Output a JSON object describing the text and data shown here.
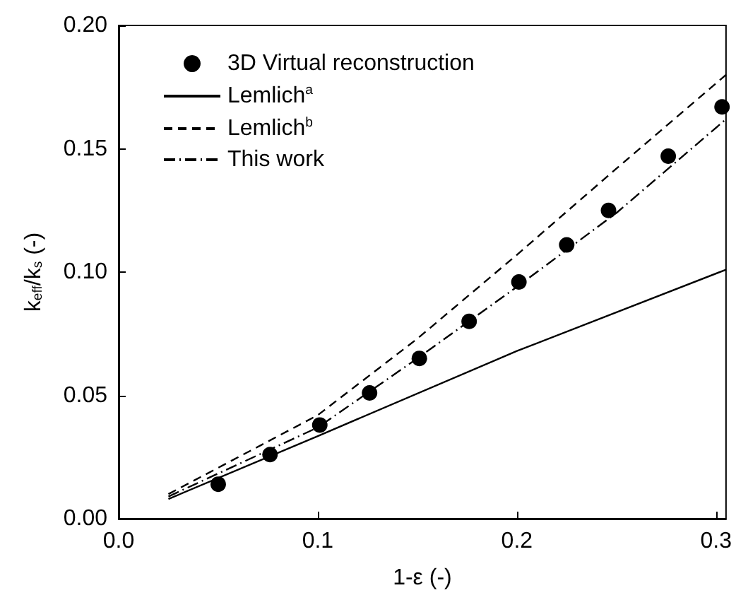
{
  "chart_data": {
    "type": "line",
    "xlabel": "1-ε (-)",
    "ylabel": "k$_{eff}$/k$_{s}$ (-)",
    "xlim": [
      0,
      0.305
    ],
    "ylim": [
      0,
      0.2
    ],
    "xticks": [
      {
        "value": 0,
        "label": "0.0"
      },
      {
        "value": 0.1,
        "label": "0.1"
      },
      {
        "value": 0.2,
        "label": "0.2"
      },
      {
        "value": 0.3,
        "label": "0.3"
      }
    ],
    "yticks": [
      {
        "value": 0,
        "label": "0.00"
      },
      {
        "value": 0.05,
        "label": "0.05"
      },
      {
        "value": 0.1,
        "label": "0.10"
      },
      {
        "value": 0.15,
        "label": "0.15"
      },
      {
        "value": 0.2,
        "label": "0.20"
      }
    ],
    "grid": false,
    "legend": "top left",
    "series": [
      {
        "name": "3D Virtual reconstruction",
        "type": "scatter",
        "marker": "circle",
        "color": "#000000",
        "x": [
          0.05,
          0.076,
          0.101,
          0.126,
          0.151,
          0.176,
          0.201,
          0.225,
          0.246,
          0.276,
          0.303
        ],
        "values": [
          0.014,
          0.026,
          0.038,
          0.051,
          0.065,
          0.08,
          0.096,
          0.111,
          0.125,
          0.147,
          0.167
        ]
      },
      {
        "name": "Lemlich$^{a}$",
        "line_style": "solid",
        "color": "#000000",
        "x": [
          0.025,
          0.1,
          0.2,
          0.305
        ],
        "values": [
          0.008,
          0.0335,
          0.068,
          0.101
        ]
      },
      {
        "name": "Lemlich$^{b}$",
        "line_style": "dashed",
        "color": "#000000",
        "x": [
          0.025,
          0.1,
          0.15,
          0.2,
          0.25,
          0.305
        ],
        "values": [
          0.01,
          0.042,
          0.073,
          0.107,
          0.142,
          0.18
        ]
      },
      {
        "name": "This work",
        "line_style": "dashdot",
        "color": "#000000",
        "x": [
          0.025,
          0.1,
          0.15,
          0.2,
          0.25,
          0.305
        ],
        "values": [
          0.009,
          0.037,
          0.065,
          0.094,
          0.124,
          0.162
        ]
      }
    ]
  }
}
